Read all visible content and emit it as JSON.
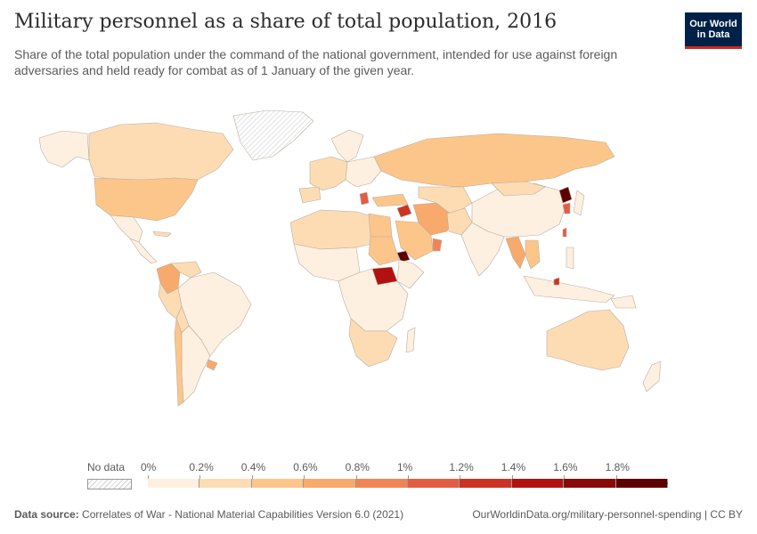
{
  "header": {
    "title": "Military personnel as a share of total population, 2016",
    "subtitle": "Share of the total population under the command of the national government, intended for use against foreign adversaries and held ready for combat as of 1 January of the given year.",
    "logo_line1": "Our World",
    "logo_line2": "in Data"
  },
  "legend": {
    "no_data_label": "No data",
    "ticks": [
      "0%",
      "0.2%",
      "0.4%",
      "0.6%",
      "0.8%",
      "1%",
      "1.2%",
      "1.4%",
      "1.6%",
      "1.8%"
    ],
    "colors": [
      "#fef0e0",
      "#fddcb4",
      "#fcc68a",
      "#f8a96c",
      "#f18455",
      "#e35d44",
      "#cd3325",
      "#b1120f",
      "#8a0a0a",
      "#5c0000"
    ]
  },
  "footer": {
    "source_label": "Data source:",
    "source_text": "Correlates of War - National Material Capabilities Version 6.0 (2021)",
    "url_license": "OurWorldinData.org/military-personnel-spending | CC BY"
  },
  "colors": {
    "no_data": "#e8e8e8",
    "border": "#b8b0a8",
    "logo_bg": "#002147",
    "logo_accent": "#ce261e"
  }
}
